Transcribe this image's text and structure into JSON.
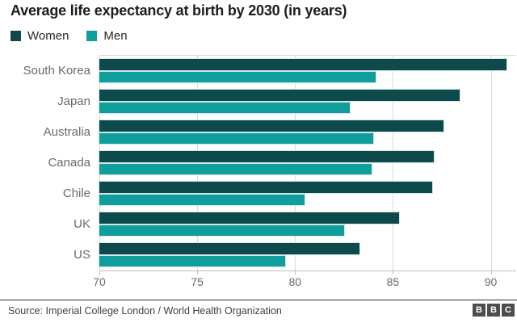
{
  "header": {
    "title": "Average life expectancy at birth by 2030 (in years)"
  },
  "legend": {
    "items": [
      {
        "label": "Women",
        "color": "#0e4a4c"
      },
      {
        "label": "Men",
        "color": "#0f9e9b"
      }
    ]
  },
  "chart_data": {
    "type": "bar",
    "orientation": "horizontal",
    "title": "Average life expectancy at birth by 2030 (in years)",
    "categories": [
      "South Korea",
      "Japan",
      "Australia",
      "Canada",
      "Chile",
      "UK",
      "US"
    ],
    "series": [
      {
        "name": "Women",
        "color": "#0e4a4c",
        "values": [
          90.8,
          88.4,
          87.6,
          87.1,
          87.0,
          85.3,
          83.3
        ]
      },
      {
        "name": "Men",
        "color": "#0f9e9b",
        "values": [
          84.1,
          82.8,
          84.0,
          83.9,
          80.5,
          82.5,
          79.5
        ]
      }
    ],
    "xlim": [
      70,
      91.3
    ],
    "x_ticks": [
      70,
      75,
      80,
      85,
      90
    ],
    "grid": true,
    "gridline_color": "#d9d9d9",
    "bar_outline_color": "#cfe8e8",
    "legend_position": "top-left"
  },
  "footer": {
    "source": "Source: Imperial College London / World Health Organization",
    "logo_letters": [
      "B",
      "B",
      "C"
    ]
  }
}
